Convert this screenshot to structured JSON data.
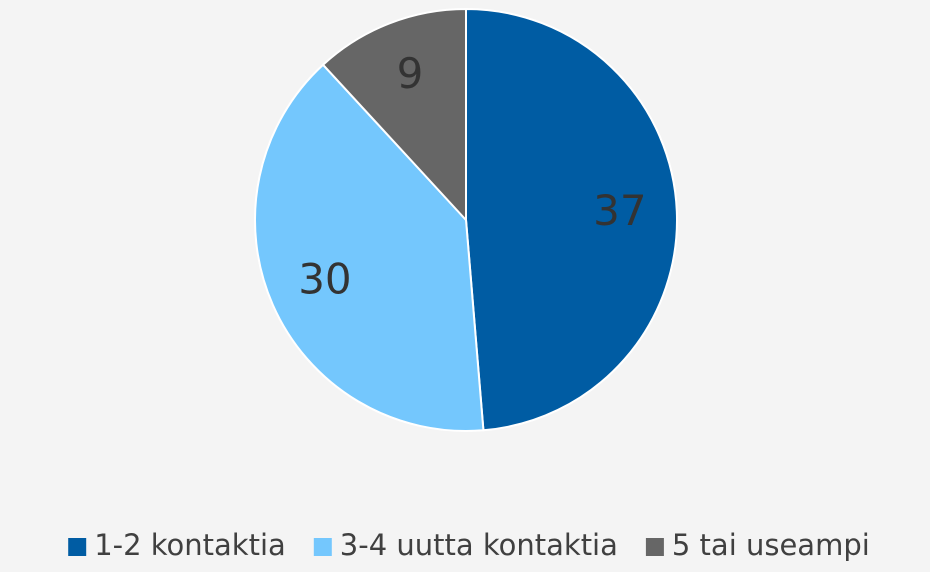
{
  "chart_data": {
    "type": "pie",
    "categories": [
      "1-2 kontaktia",
      "3-4 uutta kontaktia",
      "5 tai useampi"
    ],
    "values": [
      37,
      30,
      9
    ],
    "colors": [
      "#005ca3",
      "#74c7fd",
      "#666666"
    ],
    "legend": "bottom"
  }
}
